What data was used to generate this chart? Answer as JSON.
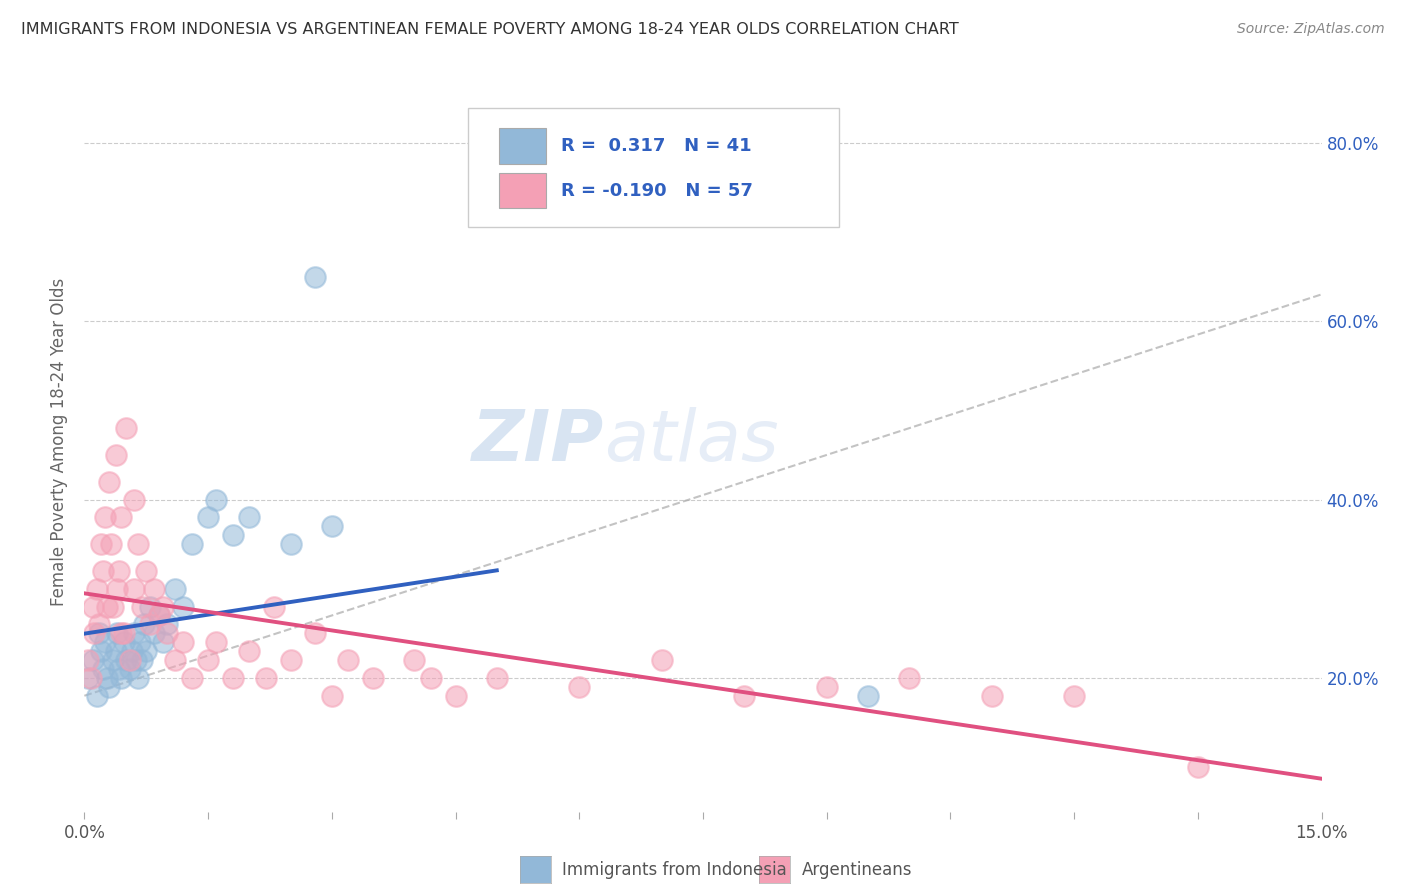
{
  "title": "IMMIGRANTS FROM INDONESIA VS ARGENTINEAN FEMALE POVERTY AMONG 18-24 YEAR OLDS CORRELATION CHART",
  "source": "Source: ZipAtlas.com",
  "xlabel_blue": "Immigrants from Indonesia",
  "xlabel_pink": "Argentineans",
  "ylabel": "Female Poverty Among 18-24 Year Olds",
  "legend_blue_R": "0.317",
  "legend_blue_N": "41",
  "legend_pink_R": "-0.190",
  "legend_pink_N": "57",
  "xlim": [
    0.0,
    15.0
  ],
  "ylim": [
    5.0,
    88.0
  ],
  "y_ticks": [
    20.0,
    40.0,
    60.0,
    80.0
  ],
  "blue_color": "#92b8d8",
  "pink_color": "#f4a0b5",
  "trend_blue_color": "#3060c0",
  "trend_pink_color": "#e05080",
  "trend_gray_color": "#aaaaaa",
  "watermark_zip": "ZIP",
  "watermark_atlas": "atlas",
  "blue_scatter_x": [
    0.05,
    0.1,
    0.15,
    0.18,
    0.2,
    0.22,
    0.25,
    0.28,
    0.3,
    0.35,
    0.38,
    0.4,
    0.42,
    0.45,
    0.48,
    0.5,
    0.55,
    0.58,
    0.6,
    0.62,
    0.65,
    0.68,
    0.7,
    0.72,
    0.75,
    0.8,
    0.85,
    0.9,
    0.95,
    1.0,
    1.1,
    1.2,
    1.3,
    1.5,
    1.6,
    1.8,
    2.0,
    2.5,
    3.0,
    2.8,
    9.5
  ],
  "blue_scatter_y": [
    20,
    22,
    18,
    25,
    23,
    21,
    24,
    20,
    19,
    22,
    23,
    25,
    21,
    20,
    24,
    22,
    21,
    23,
    25,
    22,
    20,
    24,
    22,
    26,
    23,
    28,
    25,
    27,
    24,
    26,
    30,
    28,
    35,
    38,
    40,
    36,
    38,
    35,
    37,
    65,
    18
  ],
  "pink_scatter_x": [
    0.05,
    0.08,
    0.1,
    0.12,
    0.15,
    0.18,
    0.2,
    0.22,
    0.25,
    0.28,
    0.3,
    0.32,
    0.35,
    0.38,
    0.4,
    0.42,
    0.45,
    0.48,
    0.5,
    0.55,
    0.6,
    0.65,
    0.7,
    0.75,
    0.8,
    0.85,
    0.9,
    0.95,
    1.0,
    1.1,
    1.2,
    1.3,
    1.5,
    1.8,
    2.0,
    2.2,
    2.5,
    2.8,
    3.0,
    3.5,
    4.0,
    4.5,
    5.0,
    6.0,
    7.0,
    8.0,
    9.0,
    10.0,
    11.0,
    12.0,
    1.6,
    0.6,
    0.45,
    2.3,
    3.2,
    4.2,
    13.5
  ],
  "pink_scatter_y": [
    22,
    20,
    28,
    25,
    30,
    26,
    35,
    32,
    38,
    28,
    42,
    35,
    28,
    45,
    30,
    32,
    38,
    25,
    48,
    22,
    40,
    35,
    28,
    32,
    26,
    30,
    27,
    28,
    25,
    22,
    24,
    20,
    22,
    20,
    23,
    20,
    22,
    25,
    18,
    20,
    22,
    18,
    20,
    19,
    22,
    18,
    19,
    20,
    18,
    18,
    24,
    30,
    25,
    28,
    22,
    20,
    10
  ]
}
